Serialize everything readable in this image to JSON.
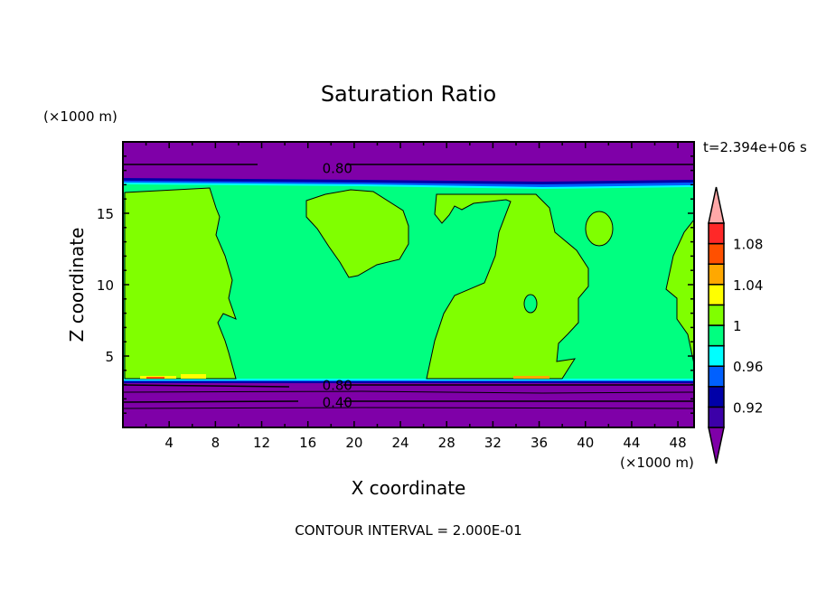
{
  "chart_data": {
    "type": "heatmap",
    "subtype": "filled-contour",
    "title": "Saturation Ratio",
    "xlabel": "X coordinate",
    "ylabel": "Z coordinate",
    "x_unit_label": "(×1000 m)",
    "y_unit_label": "(×1000 m)",
    "time_label": "t=2.394e+06 s",
    "footer": "CONTOUR INTERVAL = 2.000E-01",
    "xlim": [
      0,
      49.4
    ],
    "ylim": [
      0,
      20
    ],
    "x_ticks": [
      4,
      8,
      12,
      16,
      20,
      24,
      28,
      32,
      36,
      40,
      44,
      48
    ],
    "y_ticks": [
      5,
      10,
      15
    ],
    "contour_labels": [
      {
        "text": "0.80",
        "x": 18,
        "z": 18.2
      },
      {
        "text": "0.80",
        "x": 18,
        "z": 3.0
      },
      {
        "text": "0.40",
        "x": 18,
        "z": 1.8
      }
    ],
    "colorbar": {
      "levels": [
        0.9,
        0.92,
        0.94,
        0.96,
        0.98,
        1.0,
        1.02,
        1.04,
        1.06,
        1.08,
        1.1
      ],
      "tick_labels": [
        {
          "value": 0.92,
          "text": "0.92"
        },
        {
          "value": 0.96,
          "text": "0.96"
        },
        {
          "value": 1.0,
          "text": "1"
        },
        {
          "value": 1.04,
          "text": "1.04"
        },
        {
          "value": 1.08,
          "text": "1.08"
        }
      ],
      "colors": [
        "#3c00a8",
        "#0000a8",
        "#0060ff",
        "#00ffff",
        "#00ff80",
        "#80ff00",
        "#ffff00",
        "#ffa800",
        "#ff5000",
        "#ff2828"
      ],
      "under_color": "#7f00a8",
      "over_color": "#ffa8a8"
    },
    "field_summary": {
      "background_color": "#7f00a8",
      "saturated_layer_z": [
        3.3,
        17.0
      ],
      "layer_color": "#00ff80",
      "patch_color": "#80ff00"
    }
  }
}
